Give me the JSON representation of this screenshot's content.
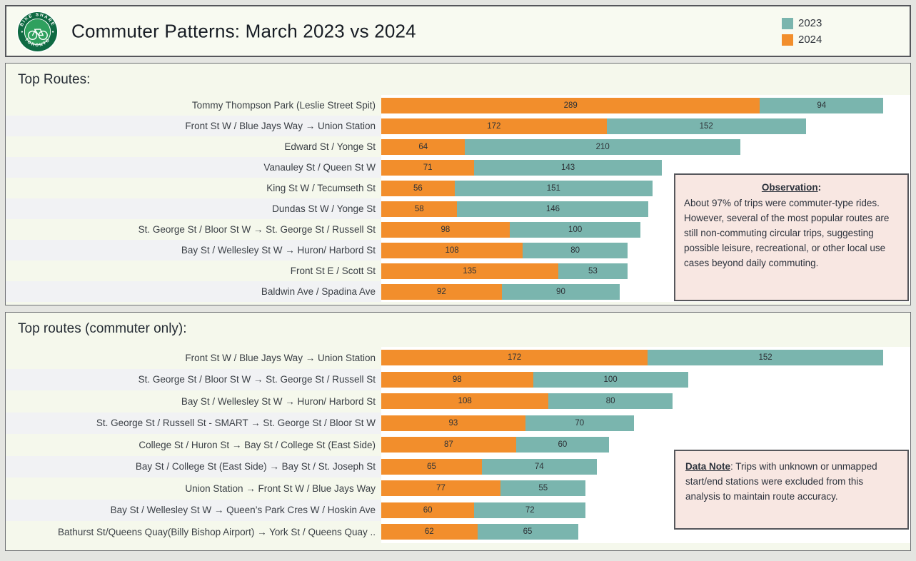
{
  "header": {
    "title": "Commuter Patterns: March 2023 vs 2024",
    "logo": {
      "top_text": "BIKE SHARE",
      "bottom_text": "TORONTO"
    },
    "legend": [
      {
        "label": "2023",
        "color": "#7ab5ae"
      },
      {
        "label": "2024",
        "color": "#f28e2c"
      }
    ]
  },
  "colors": {
    "series_2023": "#7ab5ae",
    "series_2024": "#f28e2c",
    "annotation_bg": "#f8e7e2",
    "section_bg": "#f5f8ec",
    "pane_bg": "#ffffff",
    "row_band": "#f1f2f4",
    "page_bg": "#e4e5e1"
  },
  "chart_data": [
    {
      "type": "bar",
      "orientation": "horizontal",
      "stacked": true,
      "title": "Top Routes:",
      "legend_position": "top-right",
      "grid": false,
      "stack_order": [
        "2024",
        "2023"
      ],
      "categories": [
        "Tommy Thompson Park (Leslie Street Spit)",
        "Front St W / Blue Jays Way → Union Station",
        "Edward St / Yonge St",
        "Vanauley St / Queen St W",
        "King St W / Tecumseth St",
        "Dundas St W / Yonge St",
        "St. George St / Bloor St W → St. George St / Russell St",
        "Bay St / Wellesley St W → Huron/ Harbord St",
        "Front St E / Scott St",
        "Baldwin Ave / Spadina Ave"
      ],
      "series": [
        {
          "name": "2024",
          "color": "#f28e2c",
          "values": [
            289,
            172,
            64,
            71,
            56,
            58,
            98,
            108,
            135,
            92
          ]
        },
        {
          "name": "2023",
          "color": "#7ab5ae",
          "values": [
            94,
            152,
            210,
            143,
            151,
            146,
            100,
            80,
            53,
            90
          ]
        }
      ],
      "annotation": {
        "title": "Observation",
        "title_suffix": ":",
        "text": "About 97% of trips were commuter-type rides. However, several of the most popular routes are still non-commuting circular trips, suggesting possible leisure, recreational, or other local use cases beyond daily commuting."
      }
    },
    {
      "type": "bar",
      "orientation": "horizontal",
      "stacked": true,
      "title": "Top routes (commuter only):",
      "grid": false,
      "stack_order": [
        "2024",
        "2023"
      ],
      "categories": [
        "Front St W / Blue Jays Way → Union Station",
        "St. George St / Bloor St W → St. George St / Russell St",
        "Bay St / Wellesley St W → Huron/ Harbord St",
        "St. George St / Russell St - SMART → St. George St / Bloor St W",
        "College St / Huron St → Bay St / College St (East Side)",
        "Bay St / College St (East Side) → Bay St / St. Joseph St",
        "Union Station → Front St W / Blue Jays Way",
        "Bay St / Wellesley St W → Queen’s Park Cres W / Hoskin Ave",
        "Bathurst St/Queens Quay(Billy Bishop Airport) → York St / Queens Quay .."
      ],
      "series": [
        {
          "name": "2024",
          "color": "#f28e2c",
          "values": [
            172,
            98,
            108,
            93,
            87,
            65,
            77,
            60,
            62
          ]
        },
        {
          "name": "2023",
          "color": "#7ab5ae",
          "values": [
            152,
            100,
            80,
            70,
            60,
            74,
            55,
            72,
            65
          ]
        }
      ],
      "annotation": {
        "title": "Data Note",
        "title_suffix": ": ",
        "text": "Trips with unknown or unmapped start/end stations were excluded from this analysis to maintain route accuracy."
      }
    }
  ]
}
